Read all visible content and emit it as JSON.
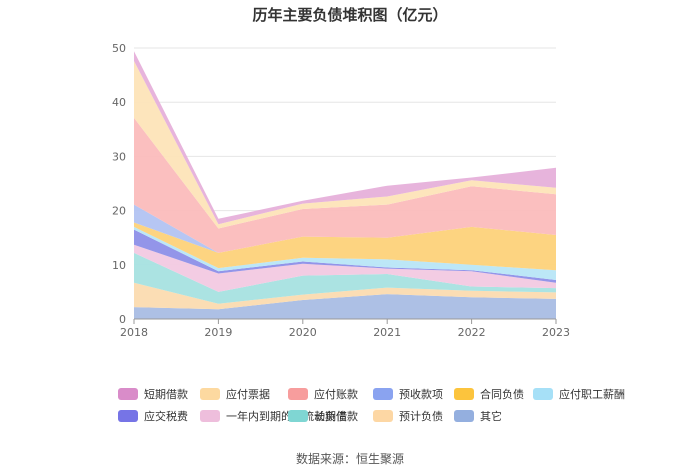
{
  "title": "历年主要负债堆积图（亿元）",
  "source": "数据来源：恒生聚源",
  "chart_data": {
    "type": "area",
    "stacked": true,
    "x": [
      "2018",
      "2019",
      "2020",
      "2021",
      "2022",
      "2023"
    ],
    "ylim": [
      0,
      50
    ],
    "yticks": [
      0,
      10,
      20,
      30,
      40,
      50
    ],
    "grid": true,
    "legend_position": "bottom",
    "series": [
      {
        "name": "其它",
        "color": "#a9bde4",
        "values": [
          2.2,
          1.8,
          3.5,
          4.6,
          4.0,
          3.7
        ]
      },
      {
        "name": "预计负债",
        "color": "#fbdbb0",
        "values": [
          4.5,
          1.0,
          1.0,
          1.2,
          1.2,
          1.2
        ]
      },
      {
        "name": "长期借款",
        "color": "#a6e2e0",
        "values": [
          5.5,
          2.2,
          3.5,
          2.5,
          0.8,
          0.8
        ]
      },
      {
        "name": "一年内到期的非流动负债",
        "color": "#f2c9e1",
        "values": [
          1.5,
          3.4,
          2.2,
          1.0,
          2.8,
          1.0
        ]
      },
      {
        "name": "应交税费",
        "color": "#8d8fe8",
        "values": [
          2.8,
          0.4,
          0.4,
          0.2,
          0.2,
          0.5
        ]
      },
      {
        "name": "应付职工薪酬",
        "color": "#b8e6f7",
        "values": [
          0.5,
          0.6,
          0.7,
          1.5,
          1.0,
          1.8
        ]
      },
      {
        "name": "合同负债",
        "color": "#fdd27a",
        "values": [
          0.8,
          2.8,
          3.9,
          4.0,
          7.0,
          6.5
        ]
      },
      {
        "name": "预收款项",
        "color": "#b2c3f2",
        "values": [
          3.3,
          0.0,
          0.0,
          0.0,
          0.0,
          0.0
        ]
      },
      {
        "name": "应付账款",
        "color": "#fbbcbc",
        "values": [
          16.0,
          4.5,
          5.1,
          6.1,
          7.5,
          7.5
        ]
      },
      {
        "name": "应付票据",
        "color": "#fde4b8",
        "values": [
          10.5,
          0.8,
          1.0,
          1.5,
          1.1,
          1.2
        ]
      },
      {
        "name": "短期借款",
        "color": "#e6b0da",
        "values": [
          1.8,
          1.0,
          0.5,
          2.0,
          0.5,
          3.7
        ]
      }
    ],
    "legend_entries": [
      {
        "name": "短期借款",
        "color": "#d98cc9"
      },
      {
        "name": "应付票据",
        "color": "#fdd9a0"
      },
      {
        "name": "应付账款",
        "color": "#f79d9d"
      },
      {
        "name": "预收款项",
        "color": "#8aa3f0"
      },
      {
        "name": "合同负债",
        "color": "#fcc43d"
      },
      {
        "name": "应付职工薪酬",
        "color": "#a6e0f7"
      },
      {
        "name": "应交税费",
        "color": "#7674e6"
      },
      {
        "name": "一年内到期的非流动负债",
        "color": "#eebedc"
      },
      {
        "name": "长期借款",
        "color": "#7fd6d3"
      },
      {
        "name": "预计负债",
        "color": "#fdd7a4"
      },
      {
        "name": "其它",
        "color": "#94afdf"
      }
    ]
  }
}
